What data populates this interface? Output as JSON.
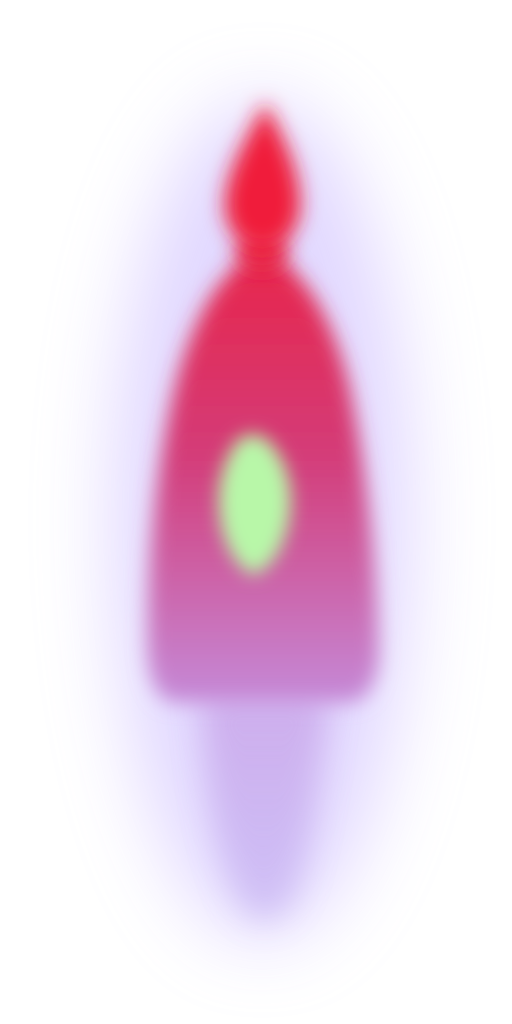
{
  "scene": {
    "subject": "blurred-figure",
    "colors": {
      "background": "#ffffff",
      "halo": "#c9b8ff",
      "head": "#f01a3a",
      "body_top": "#e8254a",
      "body_mid": "#d43c78",
      "body_low": "#c58ad8",
      "tail": "#b9a2ec",
      "core_glow": "#b8f7a8"
    }
  }
}
